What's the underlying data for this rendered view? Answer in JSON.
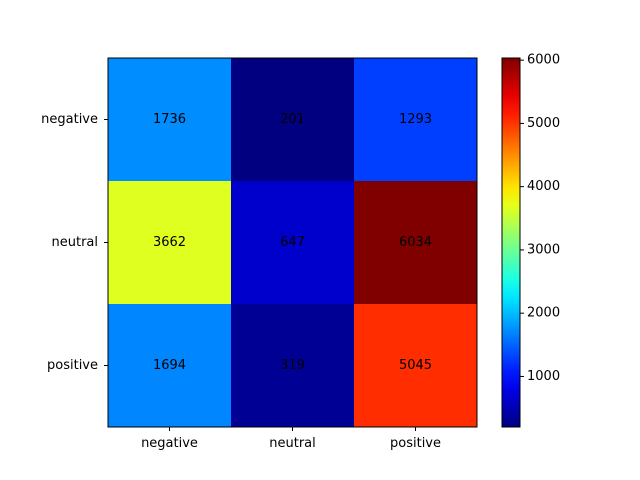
{
  "chart_data": {
    "type": "heatmap",
    "title": "",
    "xlabel": "",
    "ylabel": "",
    "x_categories": [
      "negative",
      "neutral",
      "positive"
    ],
    "y_categories": [
      "negative",
      "neutral",
      "positive"
    ],
    "values": [
      [
        1736,
        201,
        1293
      ],
      [
        3662,
        647,
        6034
      ],
      [
        1694,
        319,
        5045
      ]
    ],
    "colormap": "jet",
    "colorbar": {
      "range": [
        201,
        6034
      ],
      "ticks": [
        1000,
        2000,
        3000,
        4000,
        5000,
        6000
      ],
      "tick_labels": [
        "1000",
        "2000",
        "3000",
        "4000",
        "5000",
        "6000"
      ]
    },
    "grid": false
  }
}
